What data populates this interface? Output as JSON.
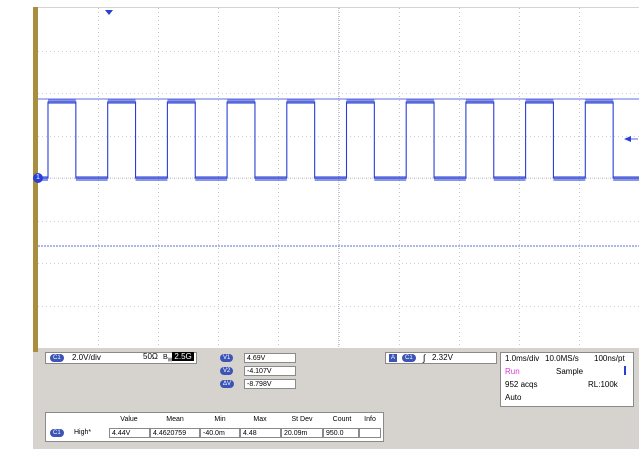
{
  "channel": {
    "label": "C1",
    "scale": "2.0V/div",
    "impedance": "50Ω",
    "bandwidth": "2.5G",
    "bw_prefix": "B",
    "bw_sub": "W"
  },
  "cursors": [
    {
      "label": "V1",
      "value": "4.69V"
    },
    {
      "label": "V2",
      "value": "-4.107V"
    },
    {
      "label": "ΔV",
      "value": "-8.798V"
    }
  ],
  "trigger": {
    "source_tag": "A",
    "channel": "C1",
    "level": "2.32V"
  },
  "timebase": {
    "scale": "1.0ms/div",
    "sample_rate": "10.0MS/s",
    "resolution": "100ns/pt",
    "state": "Run",
    "mode": "Sample",
    "acqs": "952 acqs",
    "record_length": "RL:100k",
    "trigger_mode": "Auto"
  },
  "measurements": {
    "headers": [
      "Value",
      "Mean",
      "Min",
      "Max",
      "St Dev",
      "Count",
      "Info"
    ],
    "channel": "C1",
    "type": "High*",
    "values": [
      "4.44V",
      "4.4620759",
      "-40.0m",
      "4.48",
      "20.09m",
      "950.0",
      ""
    ]
  },
  "ground_marker": "1",
  "colors": {
    "trace": "#2a3fd6",
    "grid": "#9aa0ad",
    "accent": "#3b54b5",
    "run": "#d63bd6"
  }
}
